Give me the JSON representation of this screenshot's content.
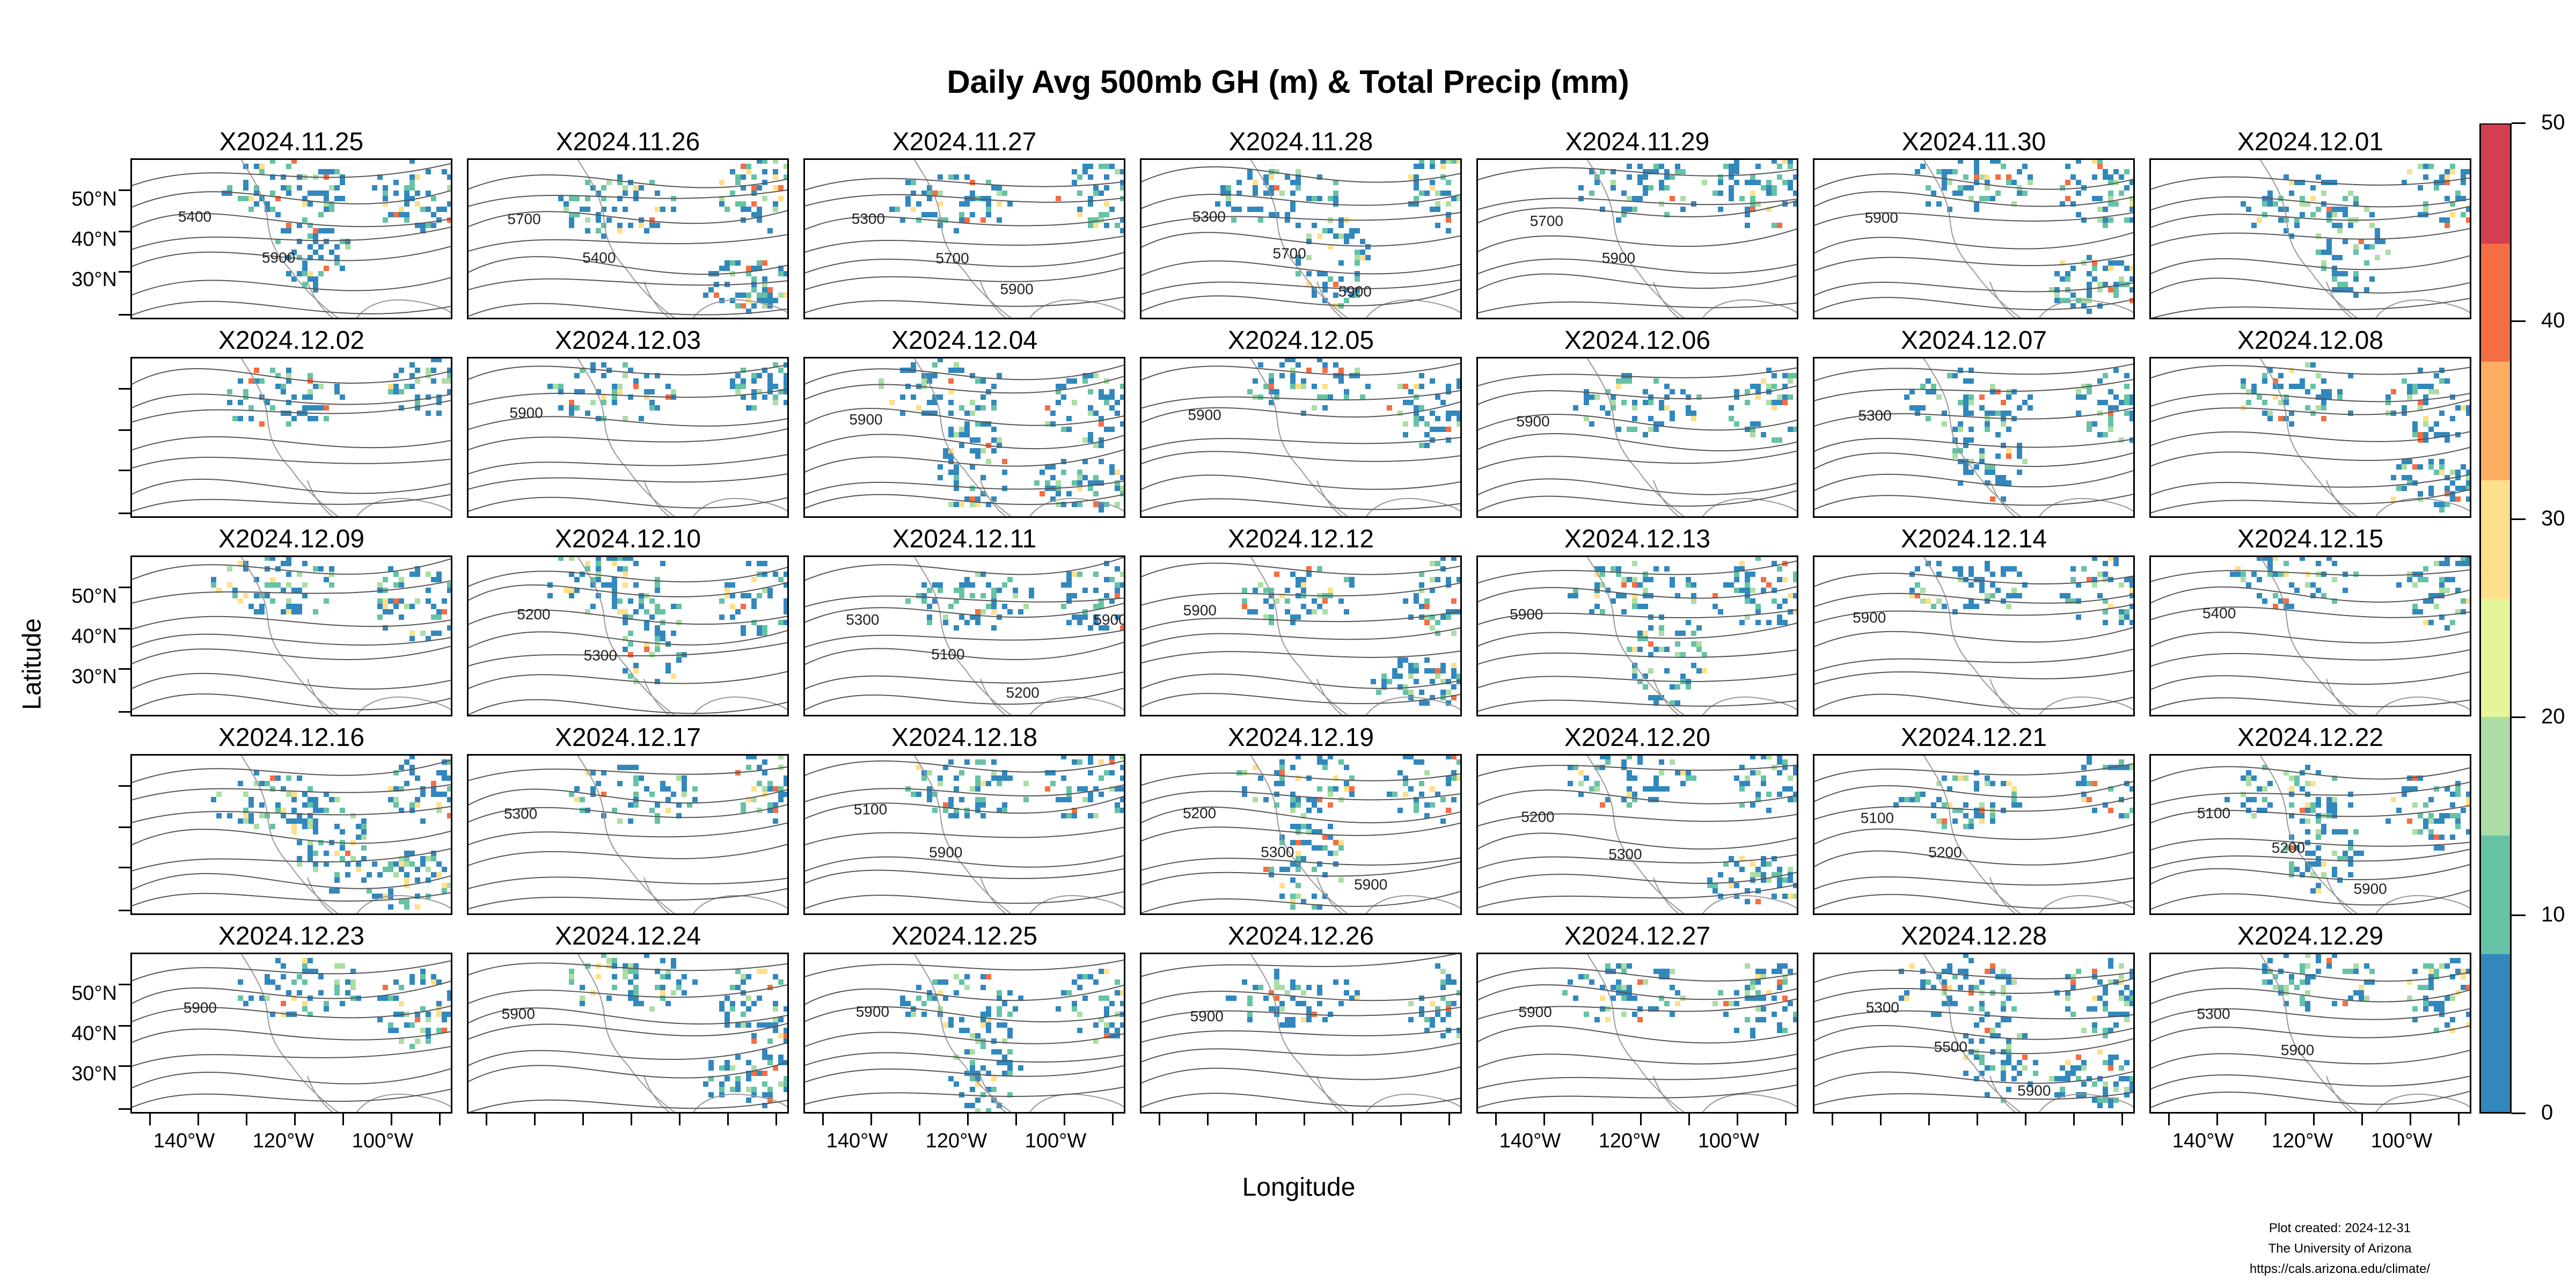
{
  "title": "Daily Avg 500mb GH (m) & Total Precip (mm)",
  "axes": {
    "x_title": "Longitude",
    "y_title": "Latitude",
    "lon_ticks": [
      "140°W",
      "120°W",
      "100°W"
    ],
    "lat_ticks": [
      "50°N",
      "40°N",
      "30°N"
    ]
  },
  "panels": [
    {
      "label": "X2024.11.25",
      "contours": [
        "5400",
        "5900"
      ]
    },
    {
      "label": "X2024.11.26",
      "contours": [
        "5700",
        "5400"
      ]
    },
    {
      "label": "X2024.11.27",
      "contours": [
        "5300",
        "5700",
        "5900"
      ]
    },
    {
      "label": "X2024.11.28",
      "contours": [
        "5300",
        "5700",
        "5900"
      ]
    },
    {
      "label": "X2024.11.29",
      "contours": [
        "5700",
        "5900"
      ]
    },
    {
      "label": "X2024.11.30",
      "contours": [
        "5900"
      ]
    },
    {
      "label": "X2024.12.01",
      "contours": []
    },
    {
      "label": "X2024.12.02",
      "contours": []
    },
    {
      "label": "X2024.12.03",
      "contours": [
        "5900"
      ]
    },
    {
      "label": "X2024.12.04",
      "contours": [
        "5900"
      ]
    },
    {
      "label": "X2024.12.05",
      "contours": [
        "5900"
      ]
    },
    {
      "label": "X2024.12.06",
      "contours": [
        "5900"
      ]
    },
    {
      "label": "X2024.12.07",
      "contours": [
        "5300"
      ]
    },
    {
      "label": "X2024.12.08",
      "contours": []
    },
    {
      "label": "X2024.12.09",
      "contours": []
    },
    {
      "label": "X2024.12.10",
      "contours": [
        "5200",
        "5300"
      ]
    },
    {
      "label": "X2024.12.11",
      "contours": [
        "5300",
        "5100",
        "5200",
        "5900"
      ]
    },
    {
      "label": "X2024.12.12",
      "contours": [
        "5900"
      ]
    },
    {
      "label": "X2024.12.13",
      "contours": [
        "5900"
      ]
    },
    {
      "label": "X2024.12.14",
      "contours": [
        "5900"
      ]
    },
    {
      "label": "X2024.12.15",
      "contours": [
        "5400"
      ]
    },
    {
      "label": "X2024.12.16",
      "contours": []
    },
    {
      "label": "X2024.12.17",
      "contours": [
        "5300"
      ]
    },
    {
      "label": "X2024.12.18",
      "contours": [
        "5100",
        "5900"
      ]
    },
    {
      "label": "X2024.12.19",
      "contours": [
        "5200",
        "5300",
        "5900"
      ]
    },
    {
      "label": "X2024.12.20",
      "contours": [
        "5200",
        "5300"
      ]
    },
    {
      "label": "X2024.12.21",
      "contours": [
        "5100",
        "5200"
      ]
    },
    {
      "label": "X2024.12.22",
      "contours": [
        "5100",
        "5200",
        "5900"
      ]
    },
    {
      "label": "X2024.12.23",
      "contours": [
        "5900"
      ]
    },
    {
      "label": "X2024.12.24",
      "contours": [
        "5900"
      ]
    },
    {
      "label": "X2024.12.25",
      "contours": [
        "5900"
      ]
    },
    {
      "label": "X2024.12.26",
      "contours": [
        "5900"
      ]
    },
    {
      "label": "X2024.12.27",
      "contours": [
        "5900"
      ]
    },
    {
      "label": "X2024.12.28",
      "contours": [
        "5300",
        "5500",
        "5900"
      ]
    },
    {
      "label": "X2024.12.29",
      "contours": [
        "5300",
        "5900"
      ]
    }
  ],
  "colorbar": {
    "ticks": [
      "0",
      "10",
      "20",
      "30",
      "40",
      "50"
    ],
    "colors": [
      "#3288bd",
      "#66c2a5",
      "#abdda4",
      "#e6f598",
      "#fee08b",
      "#fdae61",
      "#f46d43",
      "#d53e4f"
    ]
  },
  "credit": {
    "line1": "Plot created: 2024-12-31",
    "line2": "The University of Arizona",
    "line3": "https://cals.arizona.edu/climate/"
  }
}
